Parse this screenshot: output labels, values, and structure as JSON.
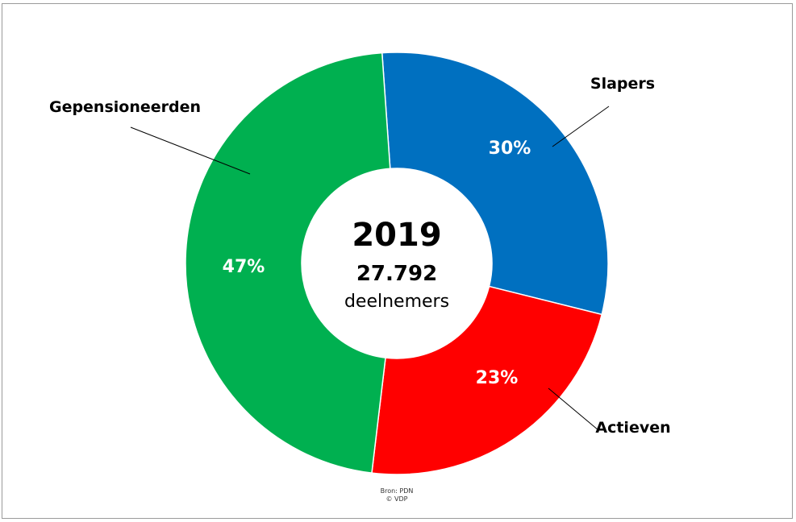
{
  "chart_data": {
    "type": "pie",
    "variant": "donut",
    "center": {
      "year": "2019",
      "total": "27.792",
      "unit": "deelnemers"
    },
    "slices": [
      {
        "label": "Slapers",
        "value": 30,
        "value_label": "30%",
        "color": "#0070C0"
      },
      {
        "label": "Actieven",
        "value": 23,
        "value_label": "23%",
        "color": "#FF0000"
      },
      {
        "label": "Gepensioneerden",
        "value": 47,
        "value_label": "47%",
        "color": "#00B050"
      }
    ],
    "source": {
      "line1": "Bron: PDN",
      "line2": "© VDP"
    }
  }
}
